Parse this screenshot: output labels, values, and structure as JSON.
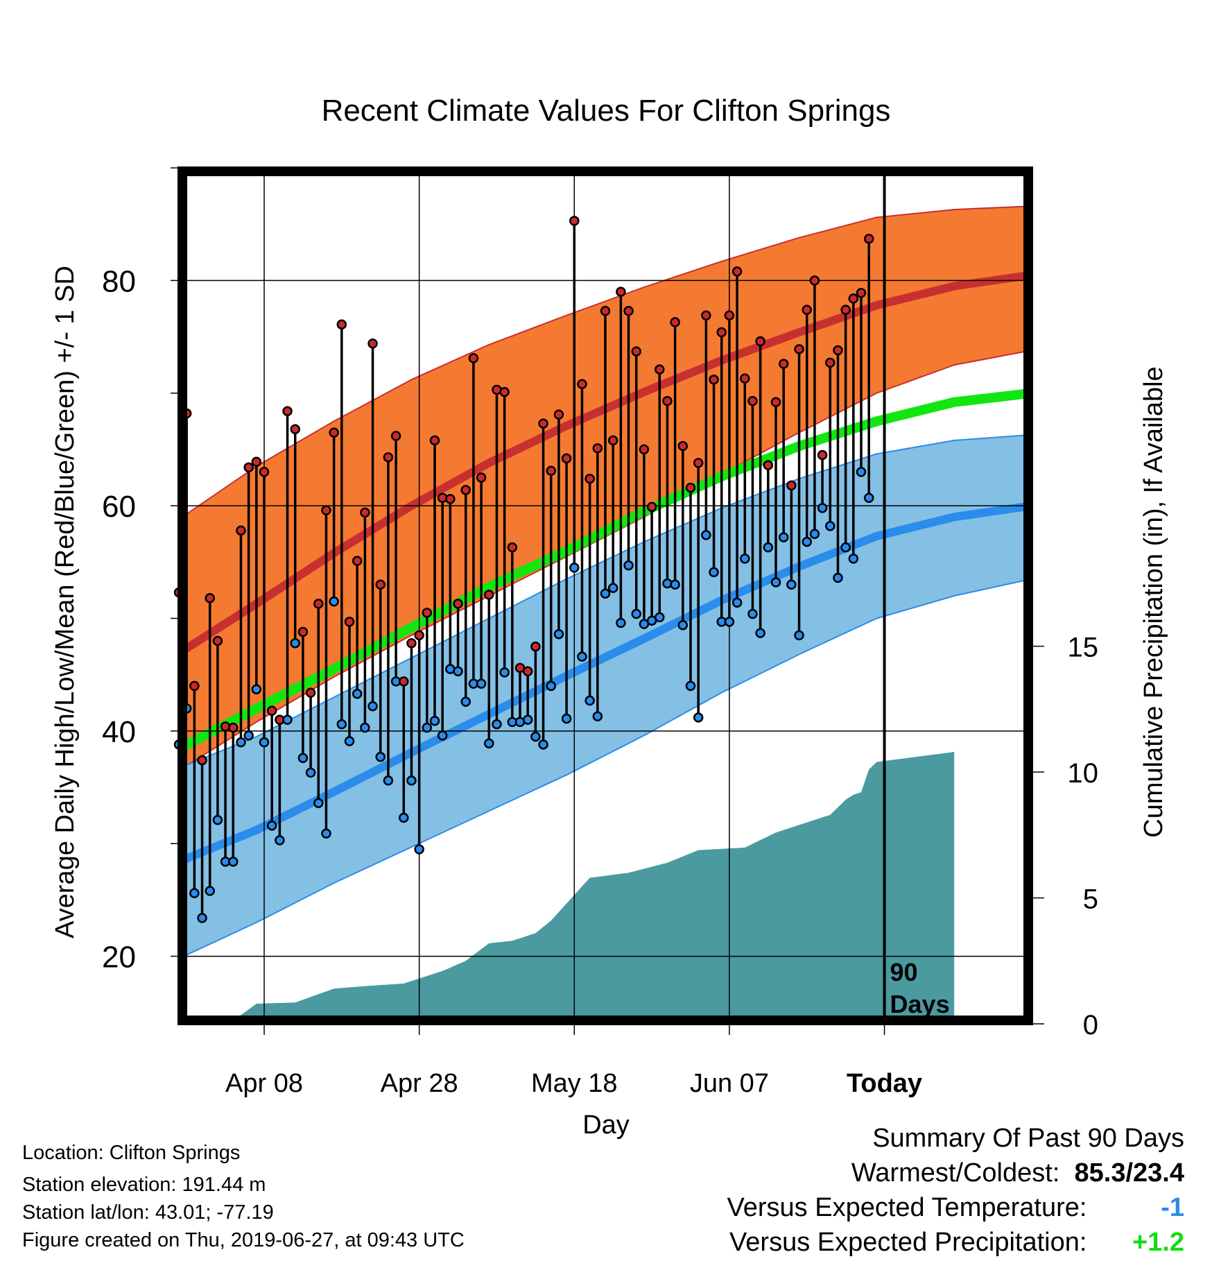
{
  "chart_data": {
    "type": "line",
    "title": "Recent Climate Values For Clifton Springs",
    "xlabel": "Day",
    "ylabel": "Average Daily High/Low/Mean (Red/Blue/Green) +/- 1 SD",
    "ylabel2": "Cumulative Precipitation (in), If Available",
    "xlim": [
      -10,
      100
    ],
    "ylim": [
      14,
      90
    ],
    "y2lim": [
      0,
      34
    ],
    "x_ticks": [
      {
        "x": 1,
        "label": "Apr 08"
      },
      {
        "x": 21,
        "label": "Apr 28"
      },
      {
        "x": 41,
        "label": "May 18"
      },
      {
        "x": 61,
        "label": "Jun 07"
      },
      {
        "x": 81,
        "label": "Today"
      }
    ],
    "y_ticks": [
      20,
      40,
      60,
      80
    ],
    "y2_ticks": [
      0,
      5,
      10,
      15
    ],
    "today_marker": {
      "x": 81,
      "label_line1": "90",
      "label_line2": "Days"
    },
    "colors": {
      "high_band": "#f47a32",
      "high_mean": "#c83030",
      "low_band": "#84bfe4",
      "low_mean": "#2a8ceb",
      "mean_line": "#11e611",
      "precip": "#4a9aa0",
      "high_point": "#cc2a2a",
      "low_point": "#2a8ceb"
    },
    "normals": {
      "x": [
        -10,
        0,
        10,
        20,
        30,
        40,
        50,
        60,
        70,
        80,
        90,
        100
      ],
      "high_mean": [
        46.9,
        51.3,
        55.8,
        60.0,
        63.8,
        67.1,
        70.1,
        72.9,
        75.4,
        77.8,
        79.5,
        80.5
      ],
      "high_upper": [
        58.8,
        63.5,
        67.5,
        71.2,
        74.3,
        76.9,
        79.4,
        81.7,
        83.8,
        85.6,
        86.3,
        86.6
      ],
      "high_lower": [
        36.5,
        40.8,
        44.8,
        48.5,
        52.0,
        55.5,
        59.0,
        62.8,
        66.5,
        70.0,
        72.5,
        73.8
      ],
      "mean_line": [
        38.4,
        42.0,
        45.5,
        49.2,
        52.8,
        56.0,
        59.5,
        62.6,
        65.3,
        67.5,
        69.2,
        70.0
      ],
      "low_mean": [
        28.4,
        31.2,
        34.6,
        38.1,
        41.5,
        44.9,
        48.2,
        51.6,
        54.6,
        57.3,
        59.0,
        60.0
      ],
      "low_upper": [
        36.7,
        39.5,
        43.0,
        46.5,
        50.0,
        53.5,
        56.8,
        59.8,
        62.4,
        64.6,
        65.8,
        66.3
      ],
      "low_lower": [
        19.8,
        23.0,
        26.5,
        29.7,
        32.9,
        36.1,
        39.6,
        43.4,
        46.8,
        50.0,
        52.0,
        53.5
      ]
    },
    "daily": {
      "x": [
        -10,
        -9,
        -8,
        -7,
        -6,
        -5,
        -4,
        -3,
        -2,
        -1,
        0,
        1,
        2,
        3,
        4,
        5,
        6,
        7,
        8,
        9,
        10,
        11,
        12,
        13,
        14,
        15,
        16,
        17,
        18,
        19,
        20,
        21,
        22,
        23,
        24,
        25,
        26,
        27,
        28,
        29,
        30,
        31,
        32,
        33,
        34,
        35,
        36,
        37,
        38,
        39,
        40,
        41,
        42,
        43,
        44,
        45,
        46,
        47,
        48,
        49,
        50,
        51,
        52,
        53,
        54,
        55,
        56,
        57,
        58,
        59,
        60,
        61,
        62,
        63,
        64,
        65,
        66,
        67,
        68,
        69,
        70,
        71,
        72,
        73,
        74,
        75,
        76,
        77,
        78,
        79
      ],
      "high": [
        52.3,
        68.2,
        44.0,
        37.4,
        51.8,
        48.0,
        40.4,
        40.3,
        57.8,
        63.4,
        63.9,
        63.0,
        41.8,
        41.0,
        68.4,
        66.8,
        48.8,
        43.4,
        51.3,
        59.6,
        66.5,
        76.1,
        49.7,
        55.1,
        59.4,
        74.4,
        53.0,
        64.3,
        66.2,
        44.4,
        47.8,
        48.5,
        50.5,
        65.8,
        60.7,
        60.6,
        51.3,
        61.4,
        73.1,
        62.5,
        52.1,
        70.3,
        70.1,
        56.3,
        45.6,
        45.3,
        47.5,
        67.3,
        63.1,
        68.1,
        64.2,
        85.3,
        70.8,
        62.4,
        65.1,
        77.3,
        65.8,
        79.0,
        77.3,
        73.7,
        65.0,
        59.9,
        72.1,
        69.3,
        76.3,
        65.3,
        61.6,
        63.8,
        76.9,
        71.2,
        75.4,
        76.9,
        80.8,
        71.3,
        69.3,
        74.6,
        63.6,
        69.2,
        72.6,
        61.8,
        73.9,
        77.4,
        80.0,
        64.5,
        72.7,
        73.8,
        77.4,
        78.4,
        78.9,
        83.7
      ],
      "low": [
        38.8,
        42.0,
        25.6,
        23.4,
        25.8,
        32.1,
        28.4,
        28.4,
        39.0,
        39.6,
        43.7,
        39.0,
        31.6,
        30.3,
        41.0,
        47.8,
        37.6,
        36.3,
        33.6,
        30.9,
        51.5,
        40.6,
        39.1,
        43.3,
        40.3,
        42.2,
        37.7,
        35.6,
        44.4,
        32.3,
        35.6,
        29.5,
        40.3,
        40.9,
        39.6,
        45.5,
        45.3,
        42.6,
        44.2,
        44.2,
        38.9,
        40.6,
        45.2,
        40.8,
        40.8,
        41.0,
        39.5,
        38.8,
        44.0,
        48.6,
        41.1,
        54.5,
        46.6,
        42.7,
        41.3,
        52.2,
        52.7,
        49.6,
        54.7,
        50.4,
        49.5,
        49.8,
        50.1,
        53.1,
        53.0,
        49.4,
        44.0,
        41.2,
        57.4,
        54.1,
        49.7,
        49.7,
        51.4,
        55.3,
        50.4,
        48.7,
        56.3,
        53.2,
        57.2,
        53.0,
        48.5,
        56.8,
        57.5,
        59.8,
        58.2,
        53.6,
        56.3,
        55.3,
        63.0,
        60.7
      ]
    },
    "precip": {
      "x": [
        -10,
        -4,
        -2,
        0,
        5,
        10,
        14,
        19,
        24,
        27,
        30,
        33,
        36,
        38,
        43,
        48,
        53,
        57,
        63,
        67,
        69,
        72,
        74,
        76,
        77,
        78,
        79,
        80,
        90
      ],
      "values": [
        0.0,
        0.1,
        0.35,
        0.8,
        0.85,
        1.4,
        1.5,
        1.6,
        2.1,
        2.5,
        3.2,
        3.3,
        3.6,
        4.1,
        5.8,
        6.0,
        6.4,
        6.9,
        7.0,
        7.6,
        7.8,
        8.1,
        8.3,
        8.9,
        9.1,
        9.2,
        10.1,
        10.4,
        10.8
      ]
    }
  },
  "footer": {
    "location": "Location: Clifton Springs",
    "elevation": "Station elevation: 191.44 m",
    "latlon": "Station lat/lon: 43.01; -77.19",
    "created": "Figure created on Thu, 2019-06-27, at 09:43 UTC"
  },
  "summary": {
    "title": "Summary Of Past 90 Days",
    "warmest_label": "Warmest/Coldest:",
    "warmest_value": "85.3/23.4",
    "temp_label": "Versus Expected Temperature:",
    "temp_value": "-1",
    "temp_color": "#2a8ceb",
    "precip_label": "Versus Expected Precipitation:",
    "precip_value": "+1.2",
    "precip_color": "#11dd11"
  }
}
